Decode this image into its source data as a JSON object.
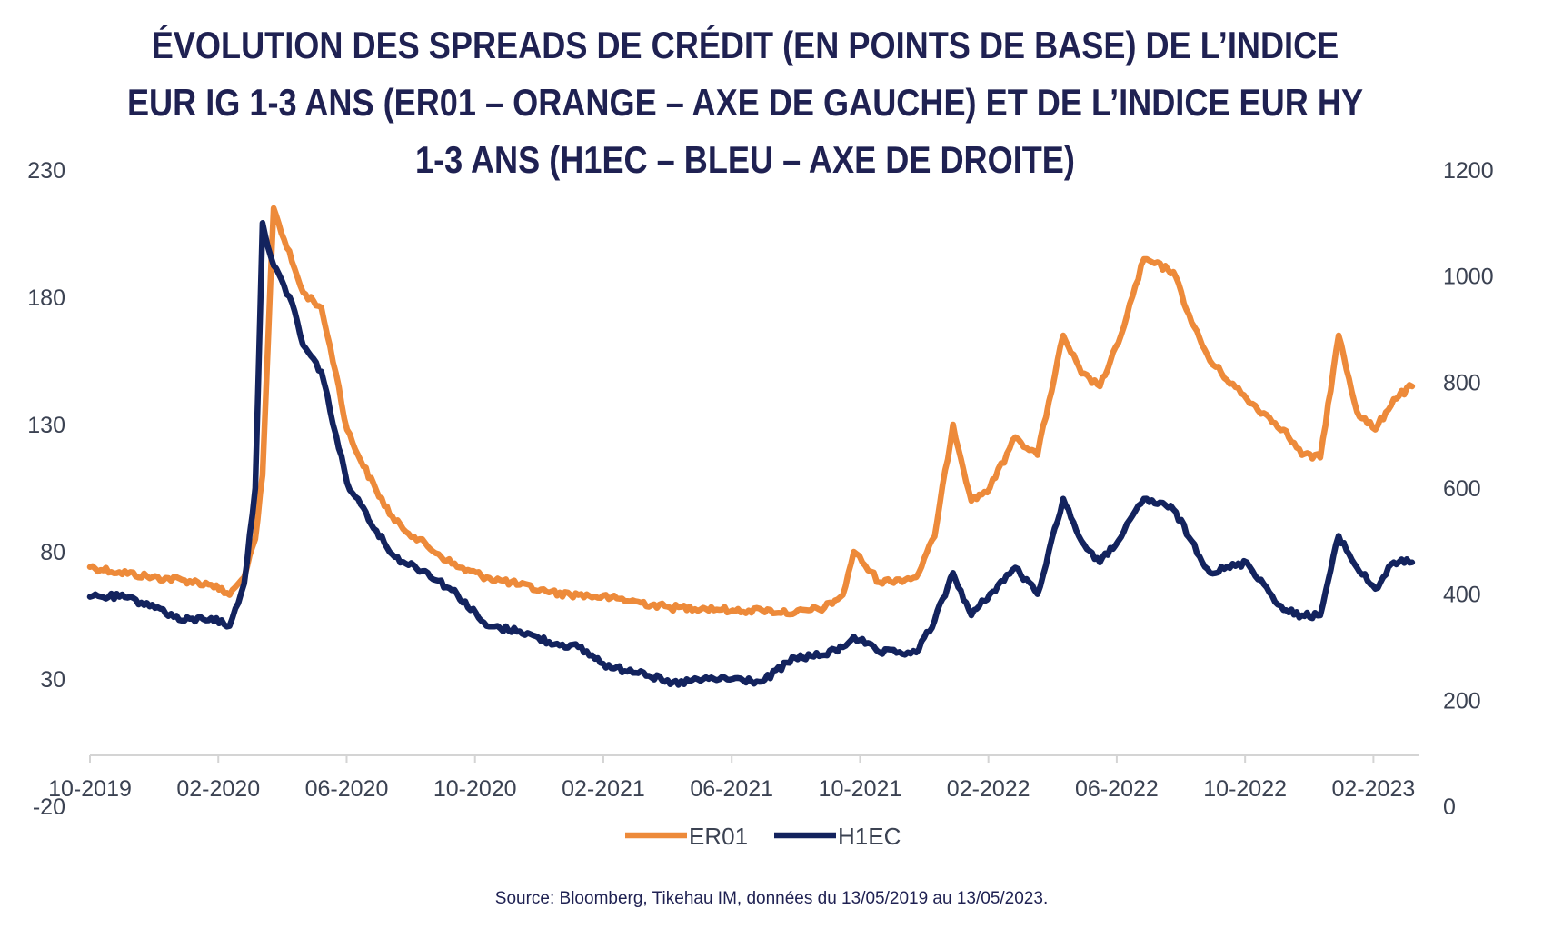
{
  "title": "ÉVOLUTION DES SPREADS DE CRÉDIT (EN POINTS DE BASE) DE L’INDICE EUR IG 1-3 ANS (ER01 – ORANGE – AXE DE GAUCHE) ET DE L’INDICE EUR HY 1-3 ANS (H1EC – BLEU – AXE DE DROITE)",
  "source": "Source: Bloomberg, Tikehau IM, données du 13/05/2019 au 13/05/2023.",
  "colors": {
    "orange": "#ed8a3a",
    "blue": "#13235e",
    "title": "#1f2152"
  },
  "chart_data": {
    "type": "line",
    "title": "ÉVOLUTION DES SPREADS DE CRÉDIT (EN POINTS DE BASE) DE L’INDICE EUR IG 1-3 ANS (ER01 – ORANGE – AXE DE GAUCHE) ET DE L’INDICE EUR HY 1-3 ANS (H1EC – BLEU – AXE DE DROITE)",
    "x_tick_labels": [
      "10-2019",
      "02-2020",
      "06-2020",
      "10-2020",
      "02-2021",
      "06-2021",
      "10-2021",
      "02-2022",
      "06-2022",
      "10-2022",
      "02-2023"
    ],
    "x_range": [
      "2019-10",
      "2023-05"
    ],
    "y_left": {
      "ticks": [
        -20,
        30,
        80,
        130,
        180,
        230
      ],
      "range": [
        -20,
        230
      ]
    },
    "y_right": {
      "ticks": [
        0,
        200,
        400,
        600,
        800,
        1000,
        1200
      ],
      "range": [
        0,
        1200
      ]
    },
    "legend": {
      "position": "bottom",
      "entries": [
        "ER01",
        "H1EC"
      ]
    },
    "grid": false,
    "series": [
      {
        "name": "ER01",
        "axis": "left",
        "color": "#ed8a3a",
        "x": [
          2019.75,
          2019.83,
          2019.92,
          2020.0,
          2020.08,
          2020.13,
          2020.17,
          2020.2,
          2020.22,
          2020.25,
          2020.3,
          2020.33,
          2020.38,
          2020.42,
          2020.45,
          2020.48,
          2020.53,
          2020.58,
          2020.67,
          2020.75,
          2020.83,
          2020.92,
          2021.0,
          2021.08,
          2021.17,
          2021.25,
          2021.33,
          2021.42,
          2021.5,
          2021.58,
          2021.67,
          2021.75,
          2021.8,
          2021.83,
          2021.9,
          2022.0,
          2022.05,
          2022.1,
          2022.15,
          2022.2,
          2022.27,
          2022.33,
          2022.4,
          2022.45,
          2022.5,
          2022.55,
          2022.62,
          2022.7,
          2022.75,
          2022.8,
          2022.9,
          2023.0,
          2023.05,
          2023.1,
          2023.15,
          2023.2,
          2023.25,
          2023.3,
          2023.35
        ],
        "values": [
          74,
          72,
          70,
          69,
          67,
          63,
          70,
          85,
          110,
          215,
          194,
          182,
          176,
          150,
          128,
          118,
          104,
          92,
          82,
          74,
          70,
          67,
          64,
          63,
          62,
          60,
          58,
          58,
          57,
          57,
          56,
          58,
          63,
          80,
          68,
          70,
          86,
          130,
          100,
          105,
          125,
          118,
          165,
          150,
          145,
          162,
          195,
          190,
          170,
          155,
          140,
          128,
          118,
          117,
          165,
          135,
          128,
          140,
          145
        ]
      },
      {
        "name": "H1EC",
        "axis": "right",
        "color": "#13235e",
        "x": [
          2019.75,
          2019.83,
          2019.92,
          2020.0,
          2020.08,
          2020.13,
          2020.17,
          2020.2,
          2020.22,
          2020.25,
          2020.3,
          2020.33,
          2020.38,
          2020.42,
          2020.45,
          2020.48,
          2020.53,
          2020.58,
          2020.67,
          2020.75,
          2020.83,
          2020.92,
          2021.0,
          2021.08,
          2021.17,
          2021.25,
          2021.33,
          2021.42,
          2021.5,
          2021.58,
          2021.67,
          2021.75,
          2021.8,
          2021.83,
          2021.9,
          2022.0,
          2022.05,
          2022.1,
          2022.15,
          2022.2,
          2022.27,
          2022.33,
          2022.4,
          2022.45,
          2022.5,
          2022.55,
          2022.62,
          2022.7,
          2022.75,
          2022.8,
          2022.9,
          2023.0,
          2023.05,
          2023.1,
          2023.15,
          2023.2,
          2023.25,
          2023.3,
          2023.35
        ],
        "values": [
          395,
          395,
          380,
          350,
          355,
          340,
          420,
          600,
          1100,
          1020,
          950,
          870,
          820,
          700,
          610,
          580,
          520,
          470,
          440,
          400,
          340,
          330,
          310,
          300,
          260,
          255,
          230,
          240,
          240,
          235,
          280,
          285,
          300,
          320,
          290,
          290,
          350,
          440,
          360,
          400,
          450,
          400,
          580,
          500,
          460,
          500,
          580,
          560,
          500,
          440,
          460,
          370,
          360,
          360,
          510,
          450,
          410,
          460,
          460
        ]
      }
    ]
  }
}
